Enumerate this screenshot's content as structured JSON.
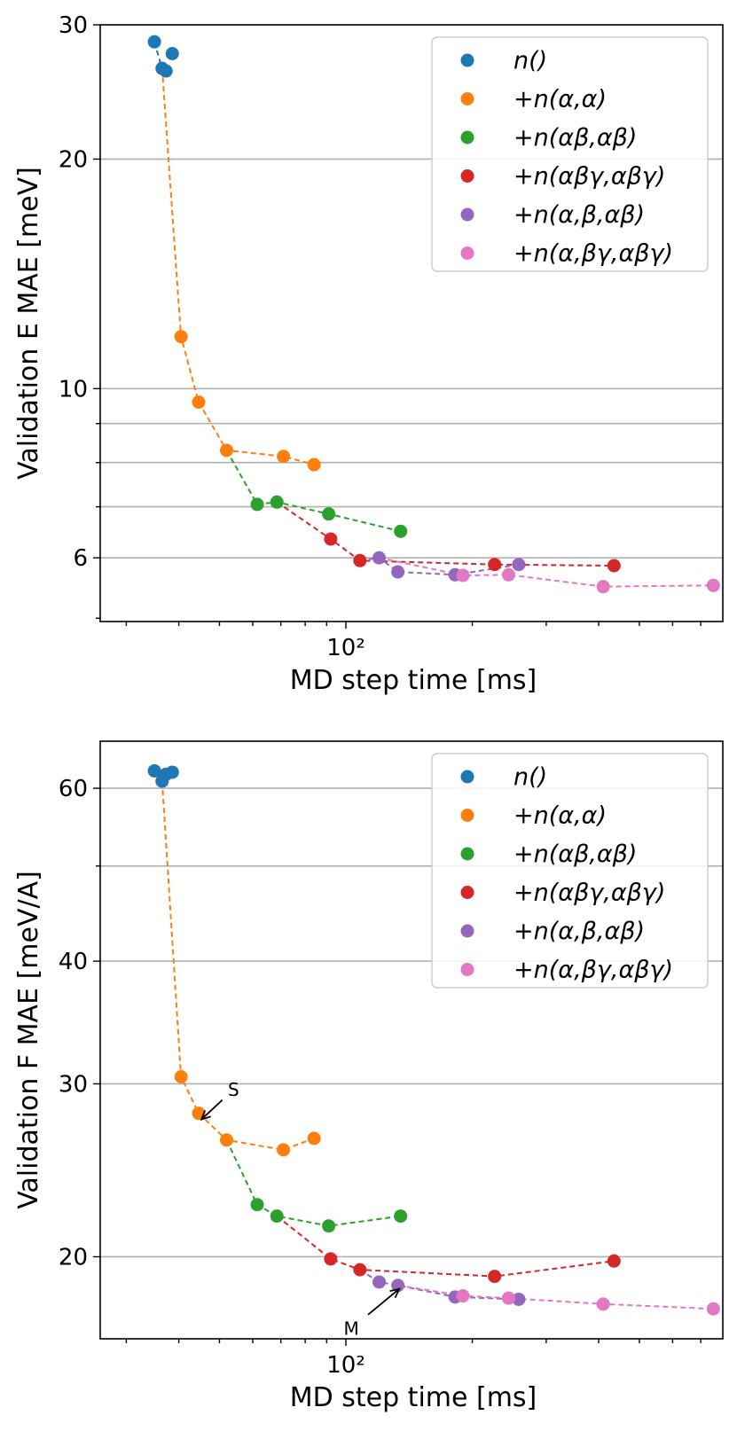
{
  "colors": {
    "n()": "#1f77b4",
    "+n(α,α)": "#ff7f0e",
    "+n(αβ,αβ)": "#2ca02c",
    "+n(αβγ,αβγ)": "#d62728",
    "+n(α,β,αβ)": "#9467bd",
    "+n(α,βγ,αβγ)": "#e377c2"
  },
  "chart_data": [
    {
      "type": "scatter",
      "xlabel": "MD step time [ms]",
      "ylabel": "Validation E MAE [meV]",
      "xscale": "log",
      "yscale": "log",
      "xlim": [
        26,
        790
      ],
      "ylim": [
        4.95,
        30
      ],
      "x_ticks": [
        100
      ],
      "x_tick_labels": [
        "10²"
      ],
      "y_ticks": [
        6,
        10,
        20,
        30
      ],
      "y_tick_labels": [
        "6",
        "10",
        "20",
        "30"
      ],
      "y_gridlines": [
        6,
        7,
        8,
        9,
        10,
        20
      ],
      "grid": "horizontal",
      "legend_position": "top-right",
      "series": [
        {
          "name": "n()",
          "markers": true,
          "line": false,
          "points": [
            [
              35.0,
              28.5
            ],
            [
              36.5,
              26.3
            ],
            [
              37.3,
              26.1
            ],
            [
              38.6,
              27.5
            ]
          ]
        },
        {
          "name": "+n(α,α)",
          "markers": true,
          "line": false,
          "points": [
            [
              40.5,
              11.7
            ],
            [
              44.6,
              9.6
            ],
            [
              52.0,
              8.3
            ],
            [
              71.0,
              8.15
            ],
            [
              84.0,
              7.95
            ]
          ]
        },
        {
          "name": "+n(αβ,αβ)",
          "markers": true,
          "line": false,
          "points": [
            [
              61.5,
              7.05
            ],
            [
              68.5,
              7.1
            ],
            [
              91.0,
              6.85
            ],
            [
              135.0,
              6.5
            ]
          ]
        },
        {
          "name": "+n(αβγ,αβγ)",
          "markers": true,
          "line": false,
          "points": [
            [
              92.0,
              6.35
            ],
            [
              108.0,
              5.95
            ],
            [
              226.0,
              5.88
            ],
            [
              435.0,
              5.86
            ]
          ]
        },
        {
          "name": "+n(α,β,αβ)",
          "markers": true,
          "line": false,
          "points": [
            [
              120.0,
              6.0
            ],
            [
              133.0,
              5.75
            ],
            [
              182.0,
              5.7
            ],
            [
              258.0,
              5.88
            ]
          ]
        },
        {
          "name": "+n(α,βγ,αβγ)",
          "markers": true,
          "line": false,
          "points": [
            [
              190.0,
              5.69
            ],
            [
              244.0,
              5.7
            ],
            [
              410.0,
              5.5
            ],
            [
              750.0,
              5.52
            ]
          ]
        }
      ],
      "dashed_lines": [
        {
          "color_of": "n()",
          "points": [
            [
              35.0,
              28.5
            ],
            [
              36.5,
              26.3
            ]
          ]
        },
        {
          "color_of": "+n(α,α)",
          "points": [
            [
              36.5,
              26.3
            ],
            [
              40.5,
              11.7
            ],
            [
              44.6,
              9.6
            ],
            [
              52.0,
              8.3
            ],
            [
              71.0,
              8.15
            ],
            [
              84.0,
              7.95
            ]
          ]
        },
        {
          "color_of": "+n(αβ,αβ)",
          "points": [
            [
              52.0,
              8.3
            ],
            [
              61.5,
              7.05
            ],
            [
              68.5,
              7.1
            ],
            [
              91.0,
              6.85
            ],
            [
              135.0,
              6.5
            ]
          ]
        },
        {
          "color_of": "+n(αβγ,αβγ)",
          "points": [
            [
              68.5,
              7.1
            ],
            [
              92.0,
              6.35
            ],
            [
              108.0,
              5.95
            ],
            [
              226.0,
              5.88
            ],
            [
              435.0,
              5.86
            ]
          ]
        },
        {
          "color_of": "+n(α,β,αβ)",
          "points": [
            [
              108.0,
              5.95
            ],
            [
              120.0,
              6.0
            ],
            [
              133.0,
              5.75
            ],
            [
              182.0,
              5.7
            ],
            [
              258.0,
              5.88
            ]
          ]
        },
        {
          "color_of": "+n(α,βγ,αβγ)",
          "points": [
            [
              120.0,
              6.0
            ],
            [
              190.0,
              5.69
            ],
            [
              244.0,
              5.7
            ],
            [
              410.0,
              5.5
            ],
            [
              750.0,
              5.52
            ]
          ]
        }
      ],
      "annotations": []
    },
    {
      "type": "scatter",
      "xlabel": "MD step time [ms]",
      "ylabel": "Validation F MAE [meV/A]",
      "xscale": "log",
      "yscale": "log",
      "xlim": [
        26,
        790
      ],
      "ylim": [
        16.5,
        67
      ],
      "x_ticks": [
        100
      ],
      "x_tick_labels": [
        "10²"
      ],
      "y_ticks": [
        20,
        30,
        40,
        60
      ],
      "y_tick_labels": [
        "20",
        "30",
        "40",
        "60"
      ],
      "y_gridlines": [
        20,
        30,
        40,
        50,
        60
      ],
      "grid": "horizontal",
      "legend_position": "top-right",
      "series": [
        {
          "name": "n()",
          "markers": true,
          "line": false,
          "points": [
            [
              35.0,
              62.5
            ],
            [
              36.5,
              61.0
            ],
            [
              37.3,
              62.0
            ],
            [
              38.6,
              62.3
            ]
          ]
        },
        {
          "name": "+n(α,α)",
          "markers": true,
          "line": false,
          "points": [
            [
              40.5,
              30.5
            ],
            [
              44.6,
              28.0
            ],
            [
              52.0,
              26.3
            ],
            [
              71.0,
              25.7
            ],
            [
              84.0,
              26.4
            ]
          ]
        },
        {
          "name": "+n(αβ,αβ)",
          "markers": true,
          "line": false,
          "points": [
            [
              61.5,
              22.6
            ],
            [
              68.5,
              22.0
            ],
            [
              91.0,
              21.5
            ],
            [
              135.0,
              22.0
            ]
          ]
        },
        {
          "name": "+n(αβγ,αβγ)",
          "markers": true,
          "line": false,
          "points": [
            [
              92.0,
              19.9
            ],
            [
              108.0,
              19.4
            ],
            [
              226.0,
              19.1
            ],
            [
              435.0,
              19.8
            ]
          ]
        },
        {
          "name": "+n(α,β,αβ)",
          "markers": true,
          "line": false,
          "points": [
            [
              120.0,
              18.85
            ],
            [
              133.0,
              18.7
            ],
            [
              182.0,
              18.2
            ],
            [
              258.0,
              18.1
            ]
          ]
        },
        {
          "name": "+n(α,βγ,αβγ)",
          "markers": true,
          "line": false,
          "points": [
            [
              190.0,
              18.25
            ],
            [
              244.0,
              18.15
            ],
            [
              410.0,
              17.9
            ],
            [
              750.0,
              17.7
            ]
          ]
        }
      ],
      "dashed_lines": [
        {
          "color_of": "n()",
          "points": [
            [
              35.0,
              62.5
            ],
            [
              36.5,
              61.0
            ]
          ]
        },
        {
          "color_of": "+n(α,α)",
          "points": [
            [
              36.5,
              61.0
            ],
            [
              40.5,
              30.5
            ],
            [
              44.6,
              28.0
            ],
            [
              52.0,
              26.3
            ],
            [
              71.0,
              25.7
            ],
            [
              84.0,
              26.4
            ]
          ]
        },
        {
          "color_of": "+n(αβ,αβ)",
          "points": [
            [
              52.0,
              26.3
            ],
            [
              61.5,
              22.6
            ],
            [
              68.5,
              22.0
            ],
            [
              91.0,
              21.5
            ],
            [
              135.0,
              22.0
            ]
          ]
        },
        {
          "color_of": "+n(αβγ,αβγ)",
          "points": [
            [
              68.5,
              22.0
            ],
            [
              92.0,
              19.9
            ],
            [
              108.0,
              19.4
            ],
            [
              226.0,
              19.1
            ],
            [
              435.0,
              19.8
            ]
          ]
        },
        {
          "color_of": "+n(α,β,αβ)",
          "points": [
            [
              108.0,
              19.4
            ],
            [
              120.0,
              18.85
            ],
            [
              133.0,
              18.7
            ],
            [
              182.0,
              18.2
            ],
            [
              258.0,
              18.1
            ]
          ]
        },
        {
          "color_of": "+n(α,βγ,αβγ)",
          "points": [
            [
              133.0,
              18.7
            ],
            [
              190.0,
              18.25
            ],
            [
              244.0,
              18.15
            ],
            [
              410.0,
              17.9
            ],
            [
              750.0,
              17.7
            ]
          ]
        }
      ],
      "annotations": [
        {
          "text": "S",
          "target": [
            45.3,
            27.6
          ],
          "text_at": [
            54.0,
            29.6
          ]
        },
        {
          "text": "M",
          "target": [
            134.0,
            18.55
          ],
          "text_at": [
            103.0,
            16.9
          ]
        }
      ]
    }
  ]
}
